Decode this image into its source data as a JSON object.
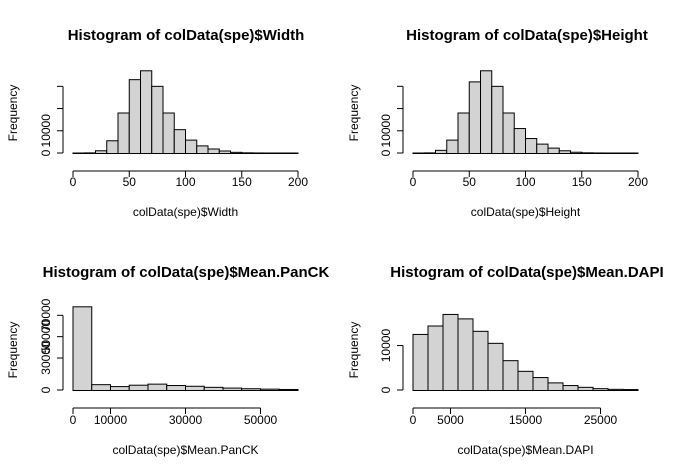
{
  "chart_data": [
    {
      "type": "bar",
      "title": "Histogram of colData(spe)$Width",
      "xlabel": "colData(spe)$Width",
      "ylabel": "Frequency",
      "xlim": [
        0,
        200
      ],
      "ylim": [
        0,
        36000
      ],
      "xticks": [
        0,
        50,
        100,
        150,
        200
      ],
      "yticks": [
        0,
        10000,
        20000,
        30000
      ],
      "ytick_labels": [
        "0",
        "10000",
        "",
        ""
      ],
      "bin_width": 10,
      "bin_start": 0,
      "values": [
        0,
        50,
        1000,
        5500,
        18000,
        33000,
        37000,
        30000,
        18000,
        10500,
        5800,
        3200,
        1800,
        900,
        300,
        80,
        20,
        0,
        0,
        0
      ],
      "bar_color": "#d3d3d3",
      "grid": false
    },
    {
      "type": "bar",
      "title": "Histogram of colData(spe)$Height",
      "xlabel": "colData(spe)$Height",
      "ylabel": "Frequency",
      "xlim": [
        0,
        200
      ],
      "ylim": [
        0,
        36000
      ],
      "xticks": [
        0,
        50,
        100,
        150,
        200
      ],
      "yticks": [
        0,
        10000,
        20000,
        30000
      ],
      "ytick_labels": [
        "0",
        "10000",
        "",
        ""
      ],
      "bin_width": 10,
      "bin_start": 0,
      "values": [
        0,
        50,
        1200,
        5800,
        18000,
        32000,
        37000,
        30000,
        18000,
        11000,
        6500,
        4000,
        2200,
        1000,
        350,
        80,
        20,
        0,
        0,
        0
      ],
      "bar_color": "#d3d3d3",
      "grid": false
    },
    {
      "type": "bar",
      "title": "Histogram of colData(spe)$Mean.PanCK",
      "xlabel": "colData(spe)$Mean.PanCK",
      "ylabel": "Frequency",
      "xlim": [
        0,
        60000
      ],
      "ylim": [
        0,
        75000
      ],
      "xticks": [
        0,
        10000,
        30000,
        50000
      ],
      "yticks": [
        0,
        30000,
        50000,
        70000
      ],
      "ytick_labels": [
        "0",
        "30000",
        "50000",
        "70000"
      ],
      "bin_width": 5000,
      "bin_start": 0,
      "values": [
        78000,
        5000,
        3200,
        4500,
        5500,
        4200,
        3500,
        2500,
        1800,
        1200,
        800,
        500
      ],
      "bar_color": "#d3d3d3",
      "grid": false
    },
    {
      "type": "bar",
      "title": "Histogram of colData(spe)$Mean.DAPI",
      "xlabel": "colData(spe)$Mean.DAPI",
      "ylabel": "Frequency",
      "xlim": [
        0,
        30000
      ],
      "ylim": [
        0,
        18000
      ],
      "xticks": [
        0,
        5000,
        15000,
        25000
      ],
      "yticks": [
        0,
        10000
      ],
      "ytick_labels": [
        "0",
        "10000"
      ],
      "bin_width": 2000,
      "bin_start": 0,
      "values": [
        12500,
        14400,
        17000,
        16000,
        13200,
        10500,
        6600,
        4200,
        2800,
        1600,
        1000,
        600,
        300,
        150,
        100
      ],
      "bar_color": "#d3d3d3",
      "grid": false
    }
  ]
}
